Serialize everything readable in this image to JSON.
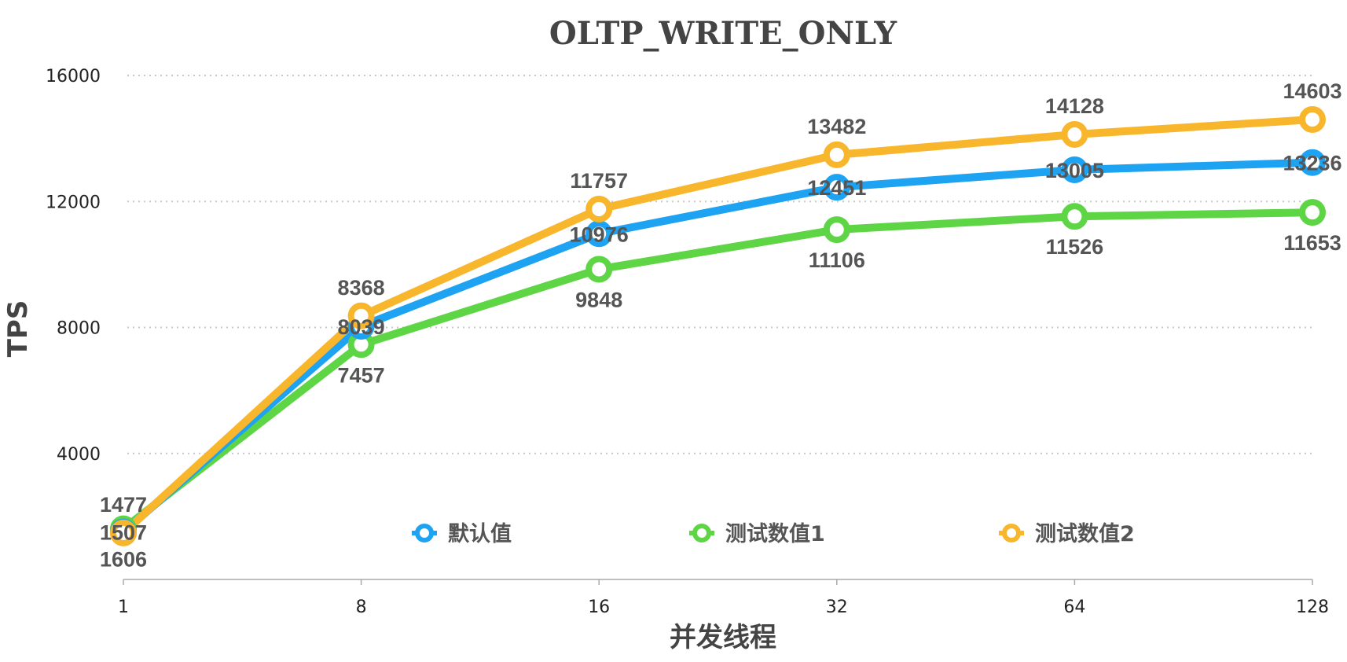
{
  "chart_data": {
    "type": "line",
    "title": "OLTP_WRITE_ONLY",
    "xlabel": "并发线程",
    "ylabel": "TPS",
    "categories": [
      "1",
      "8",
      "16",
      "32",
      "64",
      "128"
    ],
    "ylim": [
      0,
      16000
    ],
    "yticks": [
      4000,
      8000,
      12000,
      16000
    ],
    "grid": true,
    "legend_position": "bottom-inside",
    "series": [
      {
        "name": "默认值",
        "color": "#1EA2F2",
        "values": [
          1507,
          8039,
          10976,
          12451,
          13005,
          13236
        ],
        "label_pos": [
          "center",
          "center",
          "center",
          "center",
          "center",
          "center"
        ]
      },
      {
        "name": "测试数值1",
        "color": "#5ED544",
        "values": [
          1606,
          7457,
          9848,
          11106,
          11526,
          11653
        ],
        "label_pos": [
          "below",
          "below",
          "below",
          "below",
          "below",
          "below"
        ]
      },
      {
        "name": "测试数值2",
        "color": "#F8B62D",
        "values": [
          1477,
          8368,
          11757,
          13482,
          14128,
          14603
        ],
        "label_pos": [
          "above",
          "above",
          "above",
          "above",
          "above",
          "above"
        ]
      }
    ]
  }
}
